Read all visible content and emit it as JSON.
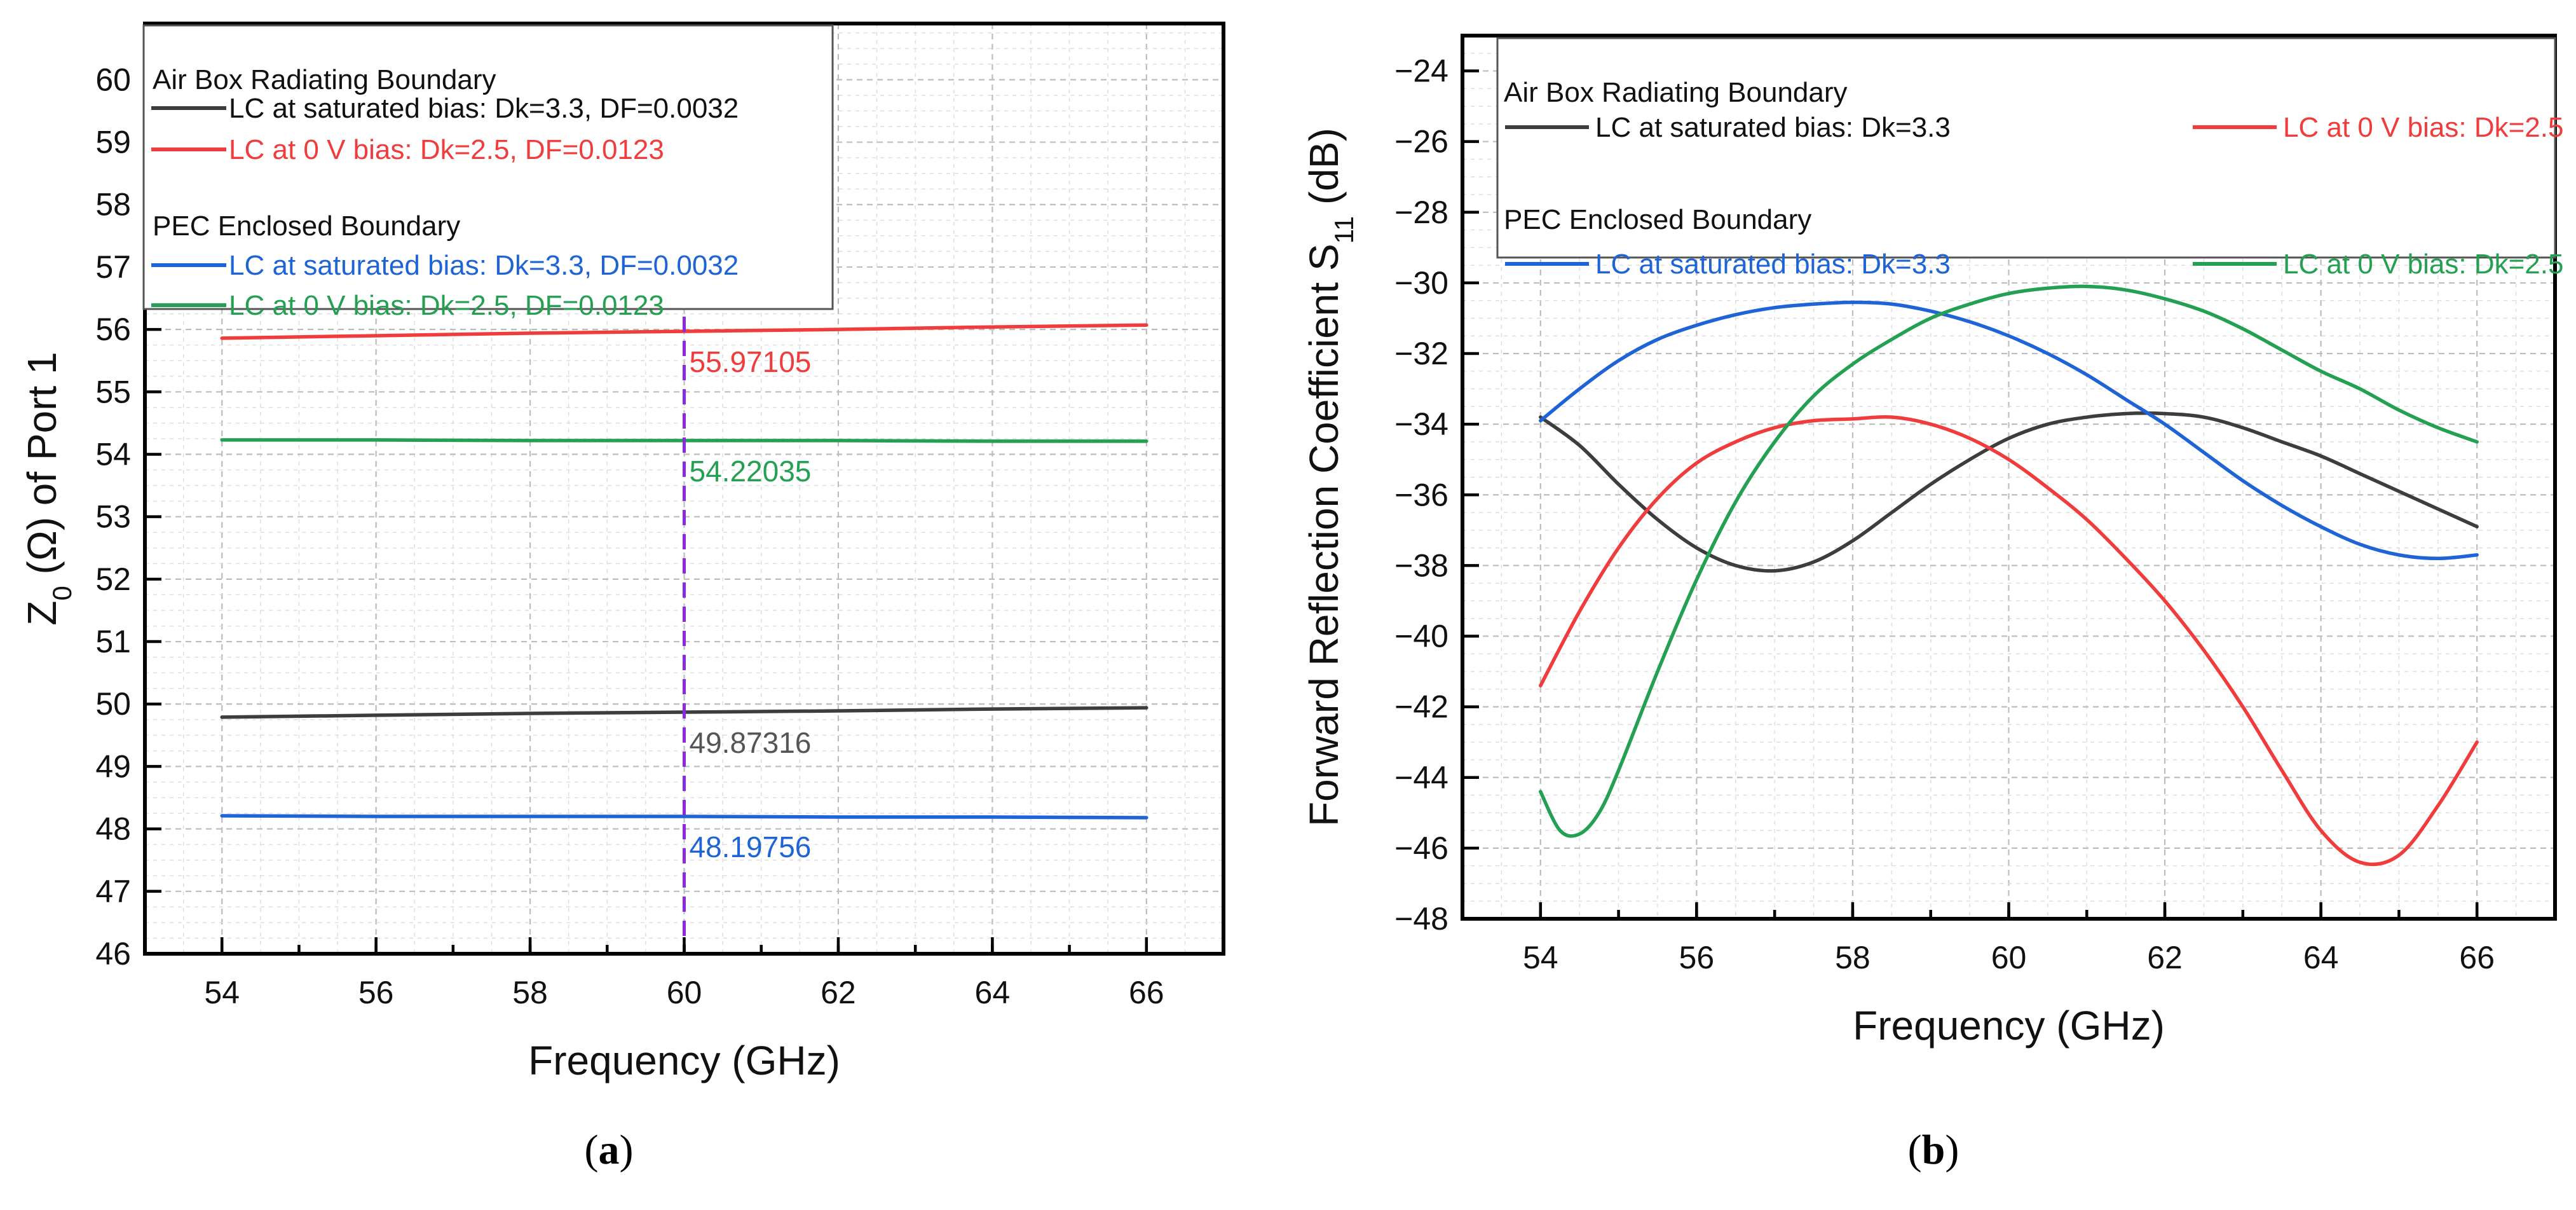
{
  "chart_data": [
    {
      "type": "line",
      "panel_label": "a",
      "xlabel": "Frequency (GHz)",
      "ylabel_base": "Z",
      "ylabel_sub": "0",
      "ylabel_rest": " (Ω) of Port 1",
      "xlim": [
        53,
        67
      ],
      "ylim": [
        46,
        60.9
      ],
      "xticks": [
        54,
        56,
        58,
        60,
        62,
        64,
        66
      ],
      "yticks": [
        46,
        47,
        48,
        49,
        50,
        51,
        52,
        53,
        54,
        55,
        56,
        57,
        58,
        59,
        60
      ],
      "grid": true,
      "legend_position": "top-left",
      "legend_groups": [
        {
          "title": "Air Box Radiating Boundary",
          "series_index": [
            0,
            1
          ]
        },
        {
          "title": "PEC Enclosed Boundary",
          "series_index": [
            2,
            3
          ]
        }
      ],
      "series": [
        {
          "name": "LC at saturated bias: Dk=3.3, DF=0.0032",
          "color": "#3d3d3d",
          "x": [
            54,
            56,
            58,
            60,
            62,
            64,
            66
          ],
          "y": [
            49.79,
            49.82,
            49.85,
            49.87,
            49.89,
            49.92,
            49.94
          ]
        },
        {
          "name": "LC at 0 V bias: Dk=2.5, DF=0.0123",
          "color": "#f03c3c",
          "x": [
            54,
            56,
            58,
            60,
            62,
            64,
            66
          ],
          "y": [
            55.86,
            55.9,
            55.94,
            55.97,
            56.0,
            56.04,
            56.07
          ]
        },
        {
          "name": "LC at saturated bias: Dk=3.3, DF=0.0032",
          "color": "#1f64d6",
          "x": [
            54,
            56,
            58,
            60,
            62,
            64,
            66
          ],
          "y": [
            48.21,
            48.2,
            48.2,
            48.2,
            48.19,
            48.19,
            48.18
          ]
        },
        {
          "name": "LC at 0 V bias: Dk=2.5, DF=0.0123",
          "color": "#24a052",
          "x": [
            54,
            56,
            58,
            60,
            62,
            64,
            66
          ],
          "y": [
            54.23,
            54.23,
            54.22,
            54.22,
            54.22,
            54.21,
            54.21
          ]
        }
      ],
      "marker_line": {
        "x": 60,
        "color": "#8a2be2"
      },
      "annotations": [
        {
          "text": "55.97105",
          "color": "#f03c3c",
          "y": 55.97
        },
        {
          "text": "54.22035",
          "color": "#24a052",
          "y": 54.22
        },
        {
          "text": "49.87316",
          "color": "#555555",
          "y": 49.87
        },
        {
          "text": "48.19756",
          "color": "#1f64d6",
          "y": 48.2
        }
      ]
    },
    {
      "type": "line",
      "panel_label": "b",
      "xlabel": "Frequency (GHz)",
      "ylabel_base": "Forward Reflection Coefficient S",
      "ylabel_sub": "11",
      "ylabel_rest": " (dB)",
      "xlim": [
        53,
        67
      ],
      "ylim": [
        -48,
        -23
      ],
      "xticks": [
        54,
        56,
        58,
        60,
        62,
        64,
        66
      ],
      "yticks": [
        -48,
        -46,
        -44,
        -42,
        -40,
        -38,
        -36,
        -34,
        -32,
        -30,
        -28,
        -26,
        -24
      ],
      "ytick_labels": [
        "−48",
        "−46",
        "−44",
        "−42",
        "−40",
        "−38",
        "−36",
        "−34",
        "−32",
        "−30",
        "−28",
        "−26",
        "−24"
      ],
      "grid": true,
      "legend_position": "top",
      "legend_groups": [
        {
          "title": "Air Box Radiating Boundary",
          "series_index": [
            0,
            1
          ]
        },
        {
          "title": "PEC Enclosed Boundary",
          "series_index": [
            2,
            3
          ]
        }
      ],
      "series": [
        {
          "name": "LC at saturated bias: Dk=3.3",
          "color": "#3d3d3d",
          "x": [
            54,
            54.5,
            55,
            55.5,
            56,
            56.5,
            57,
            57.5,
            58,
            58.5,
            59,
            59.5,
            60,
            60.5,
            61,
            61.5,
            62,
            62.5,
            63,
            63.5,
            64,
            64.5,
            65,
            65.5,
            66
          ],
          "y": [
            -33.8,
            -34.6,
            -35.7,
            -36.7,
            -37.5,
            -38.0,
            -38.15,
            -37.9,
            -37.3,
            -36.5,
            -35.7,
            -35.0,
            -34.4,
            -34.0,
            -33.8,
            -33.7,
            -33.7,
            -33.8,
            -34.1,
            -34.5,
            -34.9,
            -35.4,
            -35.9,
            -36.4,
            -36.9
          ]
        },
        {
          "name": "LC at 0 V bias: Dk=2.5",
          "color": "#f03c3c",
          "x": [
            54,
            54.5,
            55,
            55.5,
            56,
            56.5,
            57,
            57.5,
            58,
            58.5,
            59,
            59.5,
            60,
            60.5,
            61,
            61.5,
            62,
            62.5,
            63,
            63.5,
            64,
            64.5,
            65,
            65.5,
            66
          ],
          "y": [
            -41.4,
            -39.3,
            -37.5,
            -36.1,
            -35.1,
            -34.5,
            -34.1,
            -33.9,
            -33.85,
            -33.8,
            -34.0,
            -34.4,
            -35.0,
            -35.8,
            -36.7,
            -37.8,
            -39.0,
            -40.4,
            -42.0,
            -43.8,
            -45.5,
            -46.4,
            -46.2,
            -44.8,
            -43.0
          ]
        },
        {
          "name": "LC at saturated bias: Dk=3.3",
          "color": "#1f64d6",
          "x": [
            54,
            54.5,
            55,
            55.5,
            56,
            56.5,
            57,
            57.5,
            58,
            58.5,
            59,
            59.5,
            60,
            60.5,
            61,
            61.5,
            62,
            62.5,
            63,
            63.5,
            64,
            64.5,
            65,
            65.5,
            66
          ],
          "y": [
            -33.9,
            -33.0,
            -32.2,
            -31.6,
            -31.2,
            -30.9,
            -30.7,
            -30.6,
            -30.55,
            -30.6,
            -30.8,
            -31.1,
            -31.5,
            -32.0,
            -32.6,
            -33.3,
            -34.0,
            -34.8,
            -35.6,
            -36.3,
            -36.9,
            -37.4,
            -37.7,
            -37.8,
            -37.7
          ]
        },
        {
          "name": "LC at 0 V bias: Dk=2.5",
          "color": "#24a052",
          "x": [
            54,
            54.25,
            54.5,
            54.75,
            55,
            55.5,
            56,
            56.5,
            57,
            57.5,
            58,
            58.5,
            59,
            59.5,
            60,
            60.5,
            61,
            61.5,
            62,
            62.5,
            63,
            63.5,
            64,
            64.5,
            65,
            65.5,
            66
          ],
          "y": [
            -44.4,
            -45.5,
            -45.6,
            -45.0,
            -43.8,
            -41.0,
            -38.4,
            -36.2,
            -34.5,
            -33.2,
            -32.3,
            -31.6,
            -31.0,
            -30.6,
            -30.3,
            -30.15,
            -30.1,
            -30.2,
            -30.45,
            -30.8,
            -31.3,
            -31.9,
            -32.5,
            -33.0,
            -33.6,
            -34.1,
            -34.5
          ]
        }
      ]
    }
  ]
}
